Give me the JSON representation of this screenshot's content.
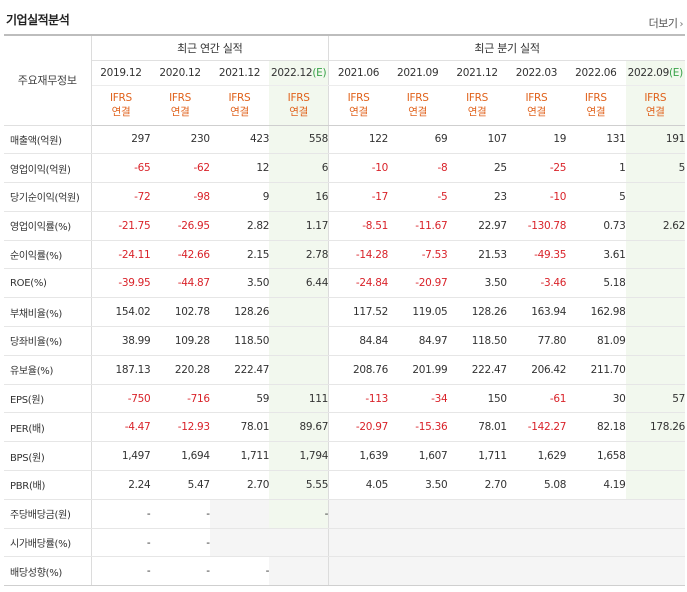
{
  "header": {
    "title": "기업실적분석",
    "more_label": "더보기"
  },
  "table": {
    "corner_label": "주요재무정보",
    "group_annual": "최근 연간 실적",
    "group_quarter": "최근 분기 실적",
    "periods": [
      {
        "label": "2019.12",
        "est": ""
      },
      {
        "label": "2020.12",
        "est": ""
      },
      {
        "label": "2021.12",
        "est": ""
      },
      {
        "label": "2022.12",
        "est": "(E)"
      },
      {
        "label": "2021.06",
        "est": ""
      },
      {
        "label": "2021.09",
        "est": ""
      },
      {
        "label": "2021.12",
        "est": ""
      },
      {
        "label": "2022.03",
        "est": ""
      },
      {
        "label": "2022.06",
        "est": ""
      },
      {
        "label": "2022.09",
        "est": "(E)"
      }
    ],
    "standard_top": "IFRS",
    "standard_bottom": "연결",
    "rows": [
      {
        "label": "매출액(억원)",
        "values": [
          "297",
          "230",
          "423",
          "558",
          "122",
          "69",
          "107",
          "19",
          "131",
          "191"
        ]
      },
      {
        "label": "영업이익(억원)",
        "values": [
          "-65",
          "-62",
          "12",
          "6",
          "-10",
          "-8",
          "25",
          "-25",
          "1",
          "5"
        ]
      },
      {
        "label": "당기순이익(억원)",
        "values": [
          "-72",
          "-98",
          "9",
          "16",
          "-17",
          "-5",
          "23",
          "-10",
          "5",
          ""
        ]
      },
      {
        "label": "영업이익률(%)",
        "values": [
          "-21.75",
          "-26.95",
          "2.82",
          "1.17",
          "-8.51",
          "-11.67",
          "22.97",
          "-130.78",
          "0.73",
          "2.62"
        ]
      },
      {
        "label": "순이익률(%)",
        "values": [
          "-24.11",
          "-42.66",
          "2.15",
          "2.78",
          "-14.28",
          "-7.53",
          "21.53",
          "-49.35",
          "3.61",
          ""
        ]
      },
      {
        "label": "ROE(%)",
        "values": [
          "-39.95",
          "-44.87",
          "3.50",
          "6.44",
          "-24.84",
          "-20.97",
          "3.50",
          "-3.46",
          "5.18",
          ""
        ]
      },
      {
        "label": "부채비율(%)",
        "values": [
          "154.02",
          "102.78",
          "128.26",
          "",
          "117.52",
          "119.05",
          "128.26",
          "163.94",
          "162.98",
          ""
        ]
      },
      {
        "label": "당좌비율(%)",
        "values": [
          "38.99",
          "109.28",
          "118.50",
          "",
          "84.84",
          "84.97",
          "118.50",
          "77.80",
          "81.09",
          ""
        ]
      },
      {
        "label": "유보율(%)",
        "values": [
          "187.13",
          "220.28",
          "222.47",
          "",
          "208.76",
          "201.99",
          "222.47",
          "206.42",
          "211.70",
          ""
        ]
      },
      {
        "label": "EPS(원)",
        "values": [
          "-750",
          "-716",
          "59",
          "111",
          "-113",
          "-34",
          "150",
          "-61",
          "30",
          "57"
        ]
      },
      {
        "label": "PER(배)",
        "values": [
          "-4.47",
          "-12.93",
          "78.01",
          "89.67",
          "-20.97",
          "-15.36",
          "78.01",
          "-142.27",
          "82.18",
          "178.26"
        ]
      },
      {
        "label": "BPS(원)",
        "values": [
          "1,497",
          "1,694",
          "1,711",
          "1,794",
          "1,639",
          "1,607",
          "1,711",
          "1,629",
          "1,658",
          ""
        ]
      },
      {
        "label": "PBR(배)",
        "values": [
          "2.24",
          "5.47",
          "2.70",
          "5.55",
          "4.05",
          "3.50",
          "2.70",
          "5.08",
          "4.19",
          ""
        ]
      },
      {
        "label": "주당배당금(원)",
        "values": [
          "-",
          "-",
          "",
          "-",
          "",
          "",
          "",
          "",
          "",
          ""
        ]
      },
      {
        "label": "시가배당률(%)",
        "values": [
          "-",
          "-",
          "",
          "",
          "",
          "",
          "",
          "",
          "",
          ""
        ]
      },
      {
        "label": "배당성향(%)",
        "values": [
          "-",
          "-",
          "-",
          "",
          "",
          "",
          "",
          "",
          "",
          ""
        ]
      }
    ]
  },
  "colors": {
    "negative": "#d9232a",
    "ifrs": "#e0621c",
    "estimate": "#3aa34a"
  }
}
